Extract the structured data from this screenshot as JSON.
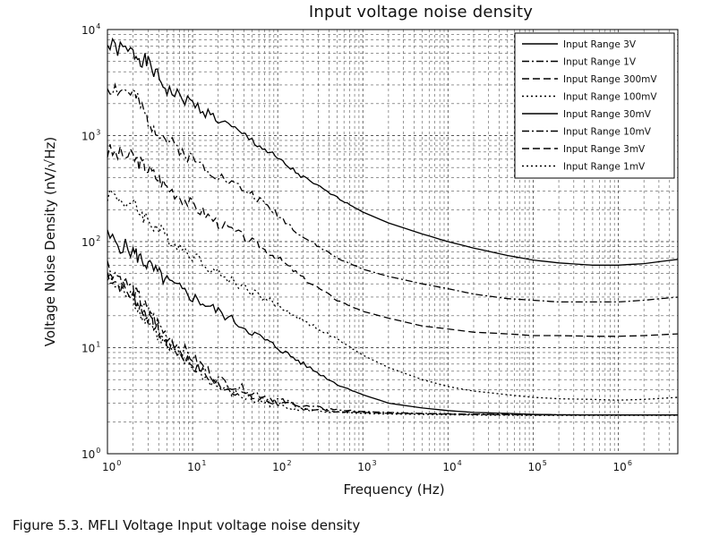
{
  "caption": "Figure 5.3. MFLI Voltage Input voltage noise density",
  "chart_data": {
    "type": "line",
    "title": "Input voltage noise density",
    "xlabel": "Frequency (Hz)",
    "ylabel": "Voltage Noise Density (nV/√Hz)",
    "xscale": "log",
    "yscale": "log",
    "xlim": [
      1,
      5000000
    ],
    "ylim": [
      1,
      10000
    ],
    "x_ticks": [
      {
        "value": 1,
        "base": "10",
        "exp": "0"
      },
      {
        "value": 10,
        "base": "10",
        "exp": "1"
      },
      {
        "value": 100,
        "base": "10",
        "exp": "2"
      },
      {
        "value": 1000,
        "base": "10",
        "exp": "3"
      },
      {
        "value": 10000,
        "base": "10",
        "exp": "4"
      },
      {
        "value": 100000,
        "base": "10",
        "exp": "5"
      },
      {
        "value": 1000000,
        "base": "10",
        "exp": "6"
      }
    ],
    "y_ticks": [
      {
        "value": 1,
        "base": "10",
        "exp": "0"
      },
      {
        "value": 10,
        "base": "10",
        "exp": "1"
      },
      {
        "value": 100,
        "base": "10",
        "exp": "2"
      },
      {
        "value": 1000,
        "base": "10",
        "exp": "3"
      },
      {
        "value": 10000,
        "base": "10",
        "exp": "4"
      }
    ],
    "grid": true,
    "grid_style": "dashed",
    "legend_position": "top-right",
    "series": [
      {
        "name": "Input Range 3V",
        "style": "solid",
        "x": [
          1,
          2,
          3,
          5,
          10,
          20,
          50,
          100,
          200,
          500,
          1000,
          2000,
          5000,
          10000,
          20000,
          50000,
          100000,
          200000,
          500000,
          1000000,
          2000000,
          5000000
        ],
        "y": [
          7000,
          6000,
          4800,
          2700,
          2000,
          1400,
          900,
          600,
          400,
          260,
          190,
          150,
          118,
          100,
          87,
          74,
          67,
          63,
          60,
          60,
          62,
          68
        ]
      },
      {
        "name": "Input Range 1V",
        "style": "dashdot",
        "x": [
          1,
          2,
          3,
          5,
          10,
          20,
          50,
          100,
          200,
          500,
          1000,
          2000,
          5000,
          10000,
          20000,
          50000,
          100000,
          200000,
          500000,
          1000000,
          2000000,
          5000000
        ],
        "y": [
          2900,
          2500,
          1400,
          900,
          600,
          420,
          280,
          180,
          110,
          70,
          55,
          47,
          40,
          36,
          32,
          29,
          28,
          27,
          27,
          27,
          28,
          30
        ]
      },
      {
        "name": "Input Range 300mV",
        "style": "dashed",
        "x": [
          1,
          2,
          3,
          5,
          10,
          20,
          50,
          100,
          200,
          500,
          1000,
          2000,
          5000,
          10000,
          20000,
          50000,
          100000,
          200000,
          500000,
          1000000,
          2000000,
          5000000
        ],
        "y": [
          700,
          620,
          480,
          330,
          220,
          150,
          100,
          70,
          45,
          28,
          22,
          19,
          16,
          15,
          14,
          13.5,
          13,
          13,
          12.8,
          12.8,
          13,
          13.5
        ]
      },
      {
        "name": "Input Range 100mV",
        "style": "dotted",
        "x": [
          1,
          2,
          3,
          5,
          10,
          20,
          50,
          100,
          200,
          500,
          1000,
          2000,
          5000,
          10000,
          20000,
          50000,
          100000,
          200000,
          500000,
          1000000,
          2000000,
          5000000
        ],
        "y": [
          290,
          220,
          160,
          110,
          75,
          50,
          34,
          25,
          18,
          12,
          8.5,
          6.5,
          5,
          4.3,
          3.9,
          3.6,
          3.4,
          3.3,
          3.25,
          3.2,
          3.25,
          3.4
        ]
      },
      {
        "name": "Input Range 30mV",
        "style": "solid",
        "x": [
          1,
          2,
          3,
          5,
          10,
          20,
          50,
          100,
          200,
          500,
          1000,
          2000,
          5000,
          10000,
          20000,
          50000,
          100000,
          200000,
          500000,
          1000000,
          2000000,
          5000000
        ],
        "y": [
          110,
          80,
          60,
          42,
          30,
          22,
          14,
          10,
          7,
          4.5,
          3.6,
          3.0,
          2.7,
          2.55,
          2.45,
          2.4,
          2.35,
          2.33,
          2.32,
          2.32,
          2.32,
          2.32
        ]
      },
      {
        "name": "Input Range 10mV",
        "style": "dashdot",
        "x": [
          1,
          2,
          3,
          5,
          10,
          20,
          50,
          100,
          200,
          500,
          1000,
          2000,
          5000,
          10000,
          20000,
          50000,
          100000,
          200000,
          500000,
          1000000,
          2000000,
          5000000
        ],
        "y": [
          60,
          35,
          22,
          13,
          8,
          5,
          3.8,
          3.2,
          2.8,
          2.6,
          2.5,
          2.45,
          2.4,
          2.38,
          2.36,
          2.35,
          2.34,
          2.33,
          2.32,
          2.32,
          2.32,
          2.32
        ]
      },
      {
        "name": "Input Range 3mV",
        "style": "dashed",
        "x": [
          1,
          2,
          3,
          5,
          10,
          20,
          50,
          100,
          200,
          500,
          1000,
          2000,
          5000,
          10000,
          20000,
          50000,
          100000,
          200000,
          500000,
          1000000,
          2000000,
          5000000
        ],
        "y": [
          50,
          30,
          20,
          11,
          7,
          4.5,
          3.4,
          3.0,
          2.7,
          2.5,
          2.45,
          2.4,
          2.38,
          2.36,
          2.34,
          2.33,
          2.32,
          2.32,
          2.31,
          2.31,
          2.31,
          2.31
        ]
      },
      {
        "name": "Input Range 1mV",
        "style": "dotted",
        "x": [
          1,
          2,
          3,
          5,
          10,
          20,
          50,
          100,
          200,
          500,
          1000,
          2000,
          5000,
          10000,
          20000,
          50000,
          100000,
          200000,
          500000,
          1000000,
          2000000,
          5000000
        ],
        "y": [
          45,
          28,
          18,
          10,
          6.5,
          4.2,
          3.2,
          2.9,
          2.6,
          2.45,
          2.4,
          2.37,
          2.35,
          2.33,
          2.32,
          2.31,
          2.3,
          2.3,
          2.3,
          2.3,
          2.3,
          2.3
        ]
      }
    ]
  }
}
